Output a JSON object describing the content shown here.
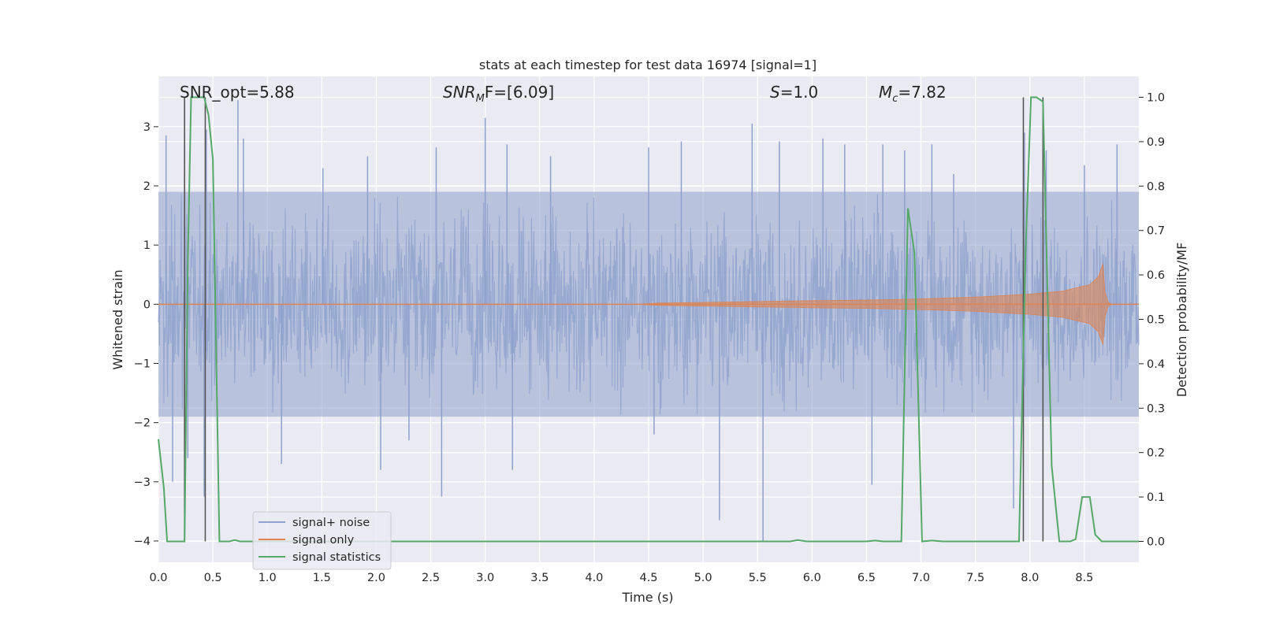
{
  "chart_data": {
    "type": "line",
    "title": "stats at each timestep for test data 16974 [signal=1]",
    "xlabel": "Time (s)",
    "ylabel_left": "Whitened strain",
    "ylabel_right": "Detection probability/MF",
    "xlim": [
      0.0,
      9.0
    ],
    "ylim_left": [
      -4.36,
      3.85
    ],
    "ylim_right": [
      -0.047,
      1.047
    ],
    "x_ticks": [
      "0.0",
      "0.5",
      "1.0",
      "1.5",
      "2.0",
      "2.5",
      "3.0",
      "3.5",
      "4.0",
      "4.5",
      "5.0",
      "5.5",
      "6.0",
      "6.5",
      "7.0",
      "7.5",
      "8.0",
      "8.5"
    ],
    "y_left_ticks": [
      "3",
      "2",
      "1",
      "0",
      "−1",
      "−2",
      "−3",
      "−4"
    ],
    "y_right_ticks": [
      "1.0",
      "0.9",
      "0.8",
      "0.7",
      "0.6",
      "0.5",
      "0.4",
      "0.3",
      "0.2",
      "0.1",
      "0.0"
    ],
    "annotations": {
      "snr_opt": "SNR_opt=5.88",
      "snr_mf_prefix": "SNR",
      "snr_mf_sub": "M",
      "snr_mf_suffix": "F=[6.09]",
      "s_var": "S",
      "s_value": "=1.0",
      "mc_var": "M",
      "mc_sub": "c",
      "mc_value": "=7.82"
    },
    "legend": {
      "position": "lower-left",
      "entries": [
        {
          "label": "signal+ noise",
          "color": "#8ea0cc"
        },
        {
          "label": "signal only",
          "color": "#dd8452"
        },
        {
          "label": "signal statistics",
          "color": "#55a868"
        }
      ]
    },
    "series": [
      {
        "name": "signal statistics",
        "axis": "right",
        "color": "#55a868",
        "points": [
          [
            0.0,
            0.23
          ],
          [
            0.05,
            0.12
          ],
          [
            0.08,
            0.0
          ],
          [
            0.24,
            0.0
          ],
          [
            0.27,
            0.63
          ],
          [
            0.3,
            1.0
          ],
          [
            0.42,
            1.0
          ],
          [
            0.46,
            0.96
          ],
          [
            0.5,
            0.86
          ],
          [
            0.56,
            0.0
          ],
          [
            0.65,
            0.0
          ],
          [
            0.7,
            0.003
          ],
          [
            0.75,
            0.0
          ],
          [
            5.8,
            0.0
          ],
          [
            5.87,
            0.003
          ],
          [
            5.95,
            0.0
          ],
          [
            6.5,
            0.0
          ],
          [
            6.58,
            0.002
          ],
          [
            6.65,
            0.0
          ],
          [
            6.82,
            0.0
          ],
          [
            6.88,
            0.75
          ],
          [
            6.94,
            0.65
          ],
          [
            7.01,
            0.0
          ],
          [
            7.1,
            0.002
          ],
          [
            7.2,
            0.0
          ],
          [
            7.9,
            0.0
          ],
          [
            7.96,
            0.65
          ],
          [
            8.01,
            1.0
          ],
          [
            8.06,
            1.0
          ],
          [
            8.12,
            0.99
          ],
          [
            8.2,
            0.17
          ],
          [
            8.27,
            0.0
          ],
          [
            8.37,
            0.0
          ],
          [
            8.42,
            0.005
          ],
          [
            8.48,
            0.1
          ],
          [
            8.55,
            0.1
          ],
          [
            8.6,
            0.015
          ],
          [
            8.66,
            0.0
          ],
          [
            9.0,
            0.0
          ]
        ]
      },
      {
        "name": "signal only",
        "axis": "left",
        "color": "#dd8452",
        "envelope": [
          [
            0.0,
            0.0
          ],
          [
            4.4,
            0.0
          ],
          [
            4.6,
            0.02
          ],
          [
            5.0,
            0.03
          ],
          [
            5.5,
            0.045
          ],
          [
            6.0,
            0.06
          ],
          [
            6.5,
            0.07
          ],
          [
            7.0,
            0.09
          ],
          [
            7.5,
            0.12
          ],
          [
            8.0,
            0.17
          ],
          [
            8.3,
            0.22
          ],
          [
            8.55,
            0.33
          ],
          [
            8.63,
            0.47
          ],
          [
            8.67,
            0.68
          ],
          [
            8.69,
            0.2
          ],
          [
            8.72,
            0.03
          ],
          [
            8.75,
            0.0
          ],
          [
            9.0,
            0.0
          ]
        ]
      },
      {
        "name": "signal+ noise",
        "axis": "left",
        "color": "#8ea0cc",
        "band_ticks": [
          -1.9,
          -1.3,
          -0.6,
          0.0,
          0.6,
          1.3,
          1.9
        ],
        "spikes": [
          [
            0.07,
            2.85
          ],
          [
            0.13,
            -3.0
          ],
          [
            0.27,
            -2.6
          ],
          [
            0.42,
            -3.25
          ],
          [
            0.44,
            2.95
          ],
          [
            0.73,
            3.45
          ],
          [
            0.78,
            2.8
          ],
          [
            1.13,
            -2.7
          ],
          [
            1.51,
            2.3
          ],
          [
            1.92,
            2.5
          ],
          [
            2.04,
            -2.8
          ],
          [
            2.3,
            -2.3
          ],
          [
            2.55,
            2.65
          ],
          [
            2.6,
            -3.25
          ],
          [
            3.0,
            3.15
          ],
          [
            3.2,
            2.7
          ],
          [
            3.25,
            -2.8
          ],
          [
            3.6,
            2.5
          ],
          [
            4.5,
            2.65
          ],
          [
            4.55,
            -2.2
          ],
          [
            4.8,
            2.75
          ],
          [
            5.15,
            -3.65
          ],
          [
            5.45,
            3.05
          ],
          [
            5.55,
            -4.0
          ],
          [
            5.7,
            2.75
          ],
          [
            6.1,
            2.8
          ],
          [
            6.3,
            2.7
          ],
          [
            6.55,
            -3.05
          ],
          [
            6.65,
            2.7
          ],
          [
            6.85,
            2.6
          ],
          [
            7.1,
            2.7
          ],
          [
            7.3,
            2.2
          ],
          [
            7.85,
            -3.45
          ],
          [
            7.95,
            2.9
          ],
          [
            8.15,
            2.6
          ],
          [
            8.5,
            2.35
          ],
          [
            8.8,
            2.7
          ]
        ]
      }
    ]
  }
}
